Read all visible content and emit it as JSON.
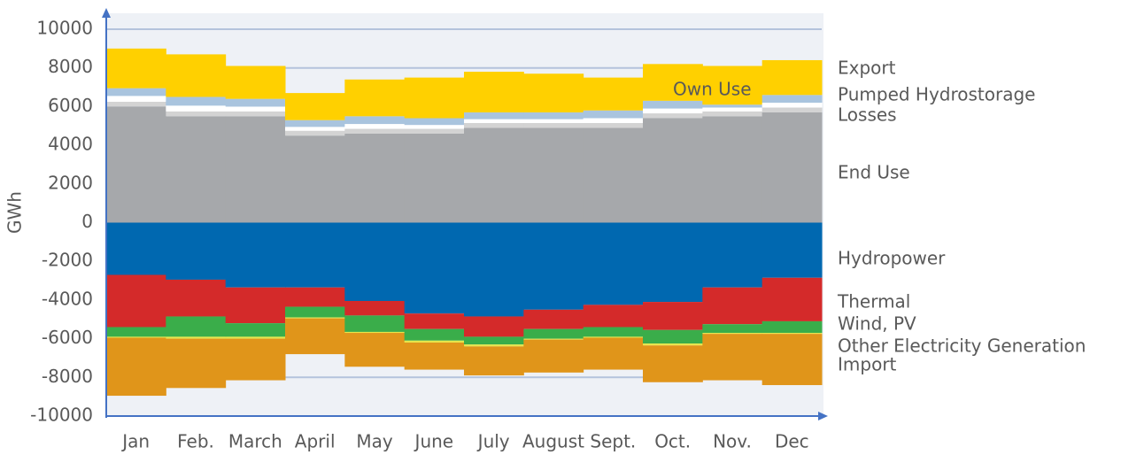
{
  "chart_data": {
    "type": "stacked_step_area",
    "y_label": "GWh",
    "categories": [
      "Jan",
      "Feb.",
      "March",
      "April",
      "May",
      "June",
      "July",
      "August",
      "Sept.",
      "Oct.",
      "Nov.",
      "Dec"
    ],
    "ylim": [
      -10000,
      10000
    ],
    "yticks": [
      -10000,
      -8000,
      -6000,
      -4000,
      -2000,
      0,
      2000,
      4000,
      6000,
      8000,
      10000
    ],
    "grid": true,
    "series": [
      {
        "name": "End Use",
        "color": "#a6a8ab",
        "label_color": "#7f7f7f",
        "values": [
          6000,
          5500,
          5500,
          4500,
          4600,
          4600,
          4900,
          4900,
          4900,
          5400,
          5500,
          5700
        ]
      },
      {
        "name": "Losses",
        "color": "#d3d3d3",
        "label_color": "#bfbfbf",
        "values": [
          250,
          250,
          250,
          250,
          250,
          250,
          250,
          250,
          250,
          250,
          250,
          250
        ]
      },
      {
        "name": "Own Use",
        "color": "#ffffff",
        "label_color": "#ffffff",
        "values": [
          300,
          300,
          250,
          200,
          250,
          200,
          200,
          200,
          250,
          250,
          200,
          250
        ]
      },
      {
        "name": "Pumped Hydrostorage",
        "color": "#a9c4de",
        "label_color": "#7f7f7f",
        "values": [
          400,
          450,
          400,
          350,
          400,
          350,
          350,
          350,
          400,
          400,
          150,
          400
        ]
      },
      {
        "name": "Export",
        "color": "#ffd000",
        "label_color": "#f5c400",
        "values": [
          2050,
          2200,
          1700,
          1400,
          1900,
          2100,
          2100,
          2000,
          1700,
          1900,
          2000,
          1800
        ]
      },
      {
        "name": "Hydropower",
        "color": "#0068b0",
        "label_color": "#0070c0",
        "values": [
          -2700,
          -2950,
          -3350,
          -3350,
          -4050,
          -4700,
          -4850,
          -4500,
          -4250,
          -4100,
          -3350,
          -2850
        ]
      },
      {
        "name": "Thermal",
        "color": "#d42a2a",
        "label_color": "#c00000",
        "values": [
          -2700,
          -1900,
          -1850,
          -1000,
          -750,
          -800,
          -1050,
          -1000,
          -1150,
          -1450,
          -1900,
          -2250
        ]
      },
      {
        "name": "Wind, PV",
        "color": "#3aad4a",
        "label_color": "#00b050",
        "values": [
          -500,
          -1050,
          -700,
          -550,
          -850,
          -600,
          -400,
          -500,
          -500,
          -700,
          -450,
          -600
        ]
      },
      {
        "name": "Other Electricity Generation",
        "color": "#e6e64a",
        "label_color": "#ffe699",
        "values": [
          -50,
          -100,
          -100,
          -50,
          -50,
          -100,
          -100,
          -50,
          -50,
          -100,
          -50,
          -50
        ]
      },
      {
        "name": "Import",
        "color": "#e0951a",
        "label_color": "#bf9000",
        "values": [
          -3000,
          -2550,
          -2150,
          -1850,
          -1750,
          -1400,
          -1500,
          -1700,
          -1650,
          -1900,
          -2400,
          -2650
        ]
      }
    ]
  }
}
